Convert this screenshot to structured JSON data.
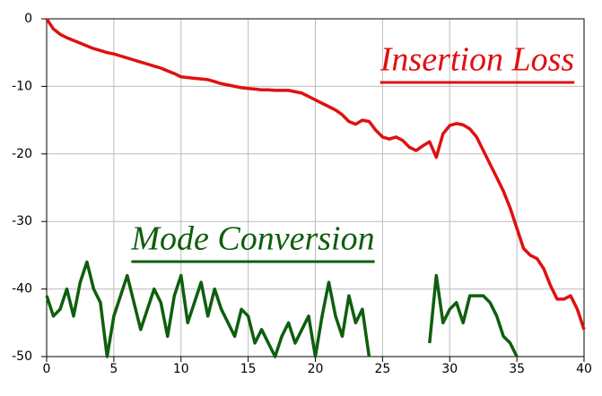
{
  "chart_data": {
    "type": "line",
    "x": [
      0,
      0.5,
      1,
      1.5,
      2,
      2.5,
      3,
      3.5,
      4,
      4.5,
      5,
      5.5,
      6,
      6.5,
      7,
      7.5,
      8,
      8.5,
      9,
      9.5,
      10,
      10.5,
      11,
      11.5,
      12,
      12.5,
      13,
      13.5,
      14,
      14.5,
      15,
      15.5,
      16,
      16.5,
      17,
      17.5,
      18,
      18.5,
      19,
      19.5,
      20,
      20.5,
      21,
      21.5,
      22,
      22.5,
      23,
      23.5,
      24,
      24.5,
      25,
      25.5,
      26,
      26.5,
      27,
      27.5,
      28,
      28.5,
      29,
      29.5,
      30,
      30.5,
      31,
      31.5,
      32,
      32.5,
      33,
      33.5,
      34,
      34.5,
      35,
      35.5,
      36,
      36.5,
      37,
      37.5,
      38,
      38.5,
      39,
      39.5,
      40
    ],
    "series": [
      {
        "name": "Insertion Loss",
        "color": "#e01010",
        "values": [
          0,
          -1.5,
          -2.3,
          -2.8,
          -3.2,
          -3.6,
          -4,
          -4.4,
          -4.7,
          -5,
          -5.2,
          -5.5,
          -5.8,
          -6.1,
          -6.4,
          -6.7,
          -7,
          -7.3,
          -7.7,
          -8.1,
          -8.6,
          -8.7,
          -8.8,
          -8.9,
          -9,
          -9.3,
          -9.6,
          -9.8,
          -10,
          -10.2,
          -10.3,
          -10.4,
          -10.5,
          -10.5,
          -10.6,
          -10.6,
          -10.6,
          -10.8,
          -11,
          -11.5,
          -12,
          -12.5,
          -13,
          -13.5,
          -14.2,
          -15.2,
          -15.6,
          -15,
          -15.2,
          -16.5,
          -17.5,
          -17.8,
          -17.5,
          -18,
          -19,
          -19.5,
          -18.8,
          -18.2,
          -20.5,
          -17,
          -15.8,
          -15.5,
          -15.7,
          -16.3,
          -17.5,
          -19.5,
          -21.5,
          -23.5,
          -25.5,
          -28,
          -31,
          -34,
          -35,
          -35.5,
          -37,
          -39.5,
          -41.5,
          -41.5,
          -41,
          -43,
          -46
        ]
      },
      {
        "name": "Mode Conversion",
        "color": "#0e5e0e",
        "values": [
          -41,
          -44,
          -43,
          -40,
          -44,
          -39,
          -36,
          -40,
          -42,
          -50,
          -44,
          -41,
          -38,
          -42,
          -46,
          -43,
          -40,
          -42,
          -47,
          -41,
          -38,
          -45,
          -42,
          -39,
          -44,
          -40,
          -43,
          -45,
          -47,
          -43,
          -44,
          -48,
          -46,
          -48,
          -50,
          -47,
          -45,
          -48,
          -46,
          -44,
          -50,
          -44,
          -39,
          -44,
          -47,
          -41,
          -45,
          -43,
          -50,
          null,
          null,
          null,
          null,
          null,
          null,
          null,
          null,
          -48,
          -38,
          -45,
          -43,
          -42,
          -45,
          -41,
          -41,
          -41,
          -42,
          -44,
          -47,
          -48,
          -50,
          null,
          null,
          null,
          null,
          null,
          null,
          null,
          null,
          null,
          null
        ]
      }
    ],
    "annotations": [
      {
        "text": "Insertion Loss",
        "series": 0
      },
      {
        "text": "Mode Conversion",
        "series": 1
      }
    ],
    "xlim": [
      0,
      40
    ],
    "xticks": [
      0,
      5,
      10,
      15,
      20,
      25,
      30,
      35,
      40
    ],
    "ylim": [
      -50,
      0
    ],
    "yticks": [
      0,
      -10,
      -20,
      -30,
      -40,
      -50
    ],
    "grid": true
  }
}
